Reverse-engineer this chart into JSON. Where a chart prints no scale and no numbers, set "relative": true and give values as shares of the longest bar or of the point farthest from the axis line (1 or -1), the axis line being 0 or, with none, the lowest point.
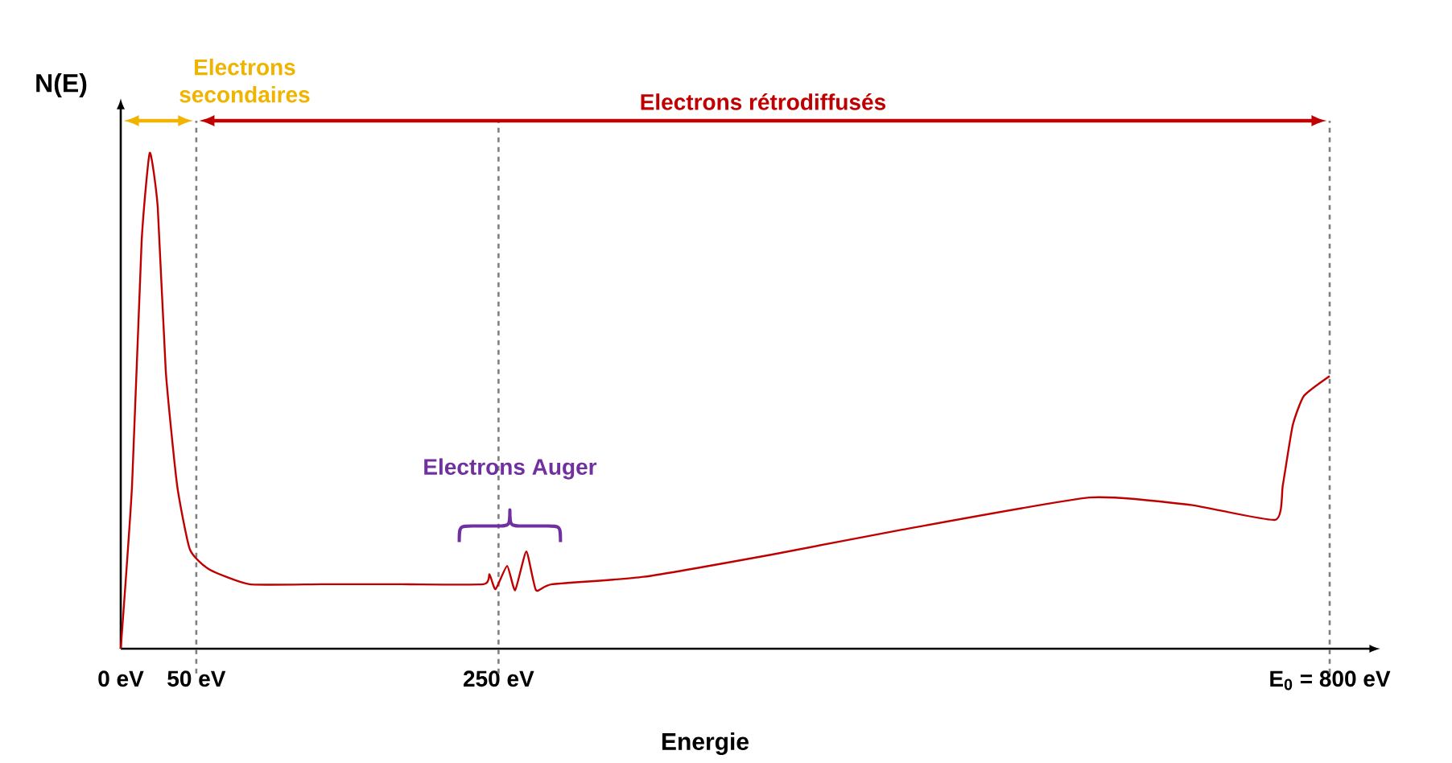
{
  "chart_data": {
    "type": "line",
    "relative": true,
    "xlabel": "Energie",
    "ylabel": "N(E)",
    "xlim": [
      0,
      826
    ],
    "xticks": [
      {
        "value": 0,
        "label": "0 eV"
      },
      {
        "value": 50,
        "label": "50 eV"
      },
      {
        "value": 250,
        "label": "250 eV"
      },
      {
        "value": 800,
        "label": "E$_{0}$ = 800 eV"
      }
    ],
    "series": [
      {
        "color": "#c00000",
        "x": [
          0,
          7.5,
          13.8,
          19.2,
          24.5,
          29.8,
          37.3,
          45.8,
          58.6,
          85.2,
          133,
          186,
          240,
          244,
          248,
          255.7,
          261,
          268.4,
          274.8,
          285.5,
          346,
          431,
          517,
          641,
          708,
          764,
          769,
          775.5,
          783,
          800
        ],
        "values": [
          0,
          0.33,
          0.82,
          1,
          0.89,
          0.56,
          0.33,
          0.2,
          0.16,
          0.13,
          0.13,
          0.13,
          0.13,
          0.15,
          0.12,
          0.167,
          0.118,
          0.196,
          0.118,
          0.13,
          0.145,
          0.19,
          0.24,
          0.305,
          0.29,
          0.26,
          0.33,
          0.45,
          0.51,
          0.55
        ]
      }
    ],
    "ref_lines": [
      {
        "axis": "x",
        "value": 50,
        "color": "#808080",
        "line_style": "dashed"
      },
      {
        "axis": "x",
        "value": 250,
        "color": "#808080",
        "line_style": "dashed"
      },
      {
        "axis": "x",
        "value": 800,
        "color": "#808080",
        "line_style": "dashed"
      }
    ],
    "annotations": [
      "Electrons secondaires",
      "Electrons rétrodiffusés",
      "Electrons Auger"
    ]
  }
}
